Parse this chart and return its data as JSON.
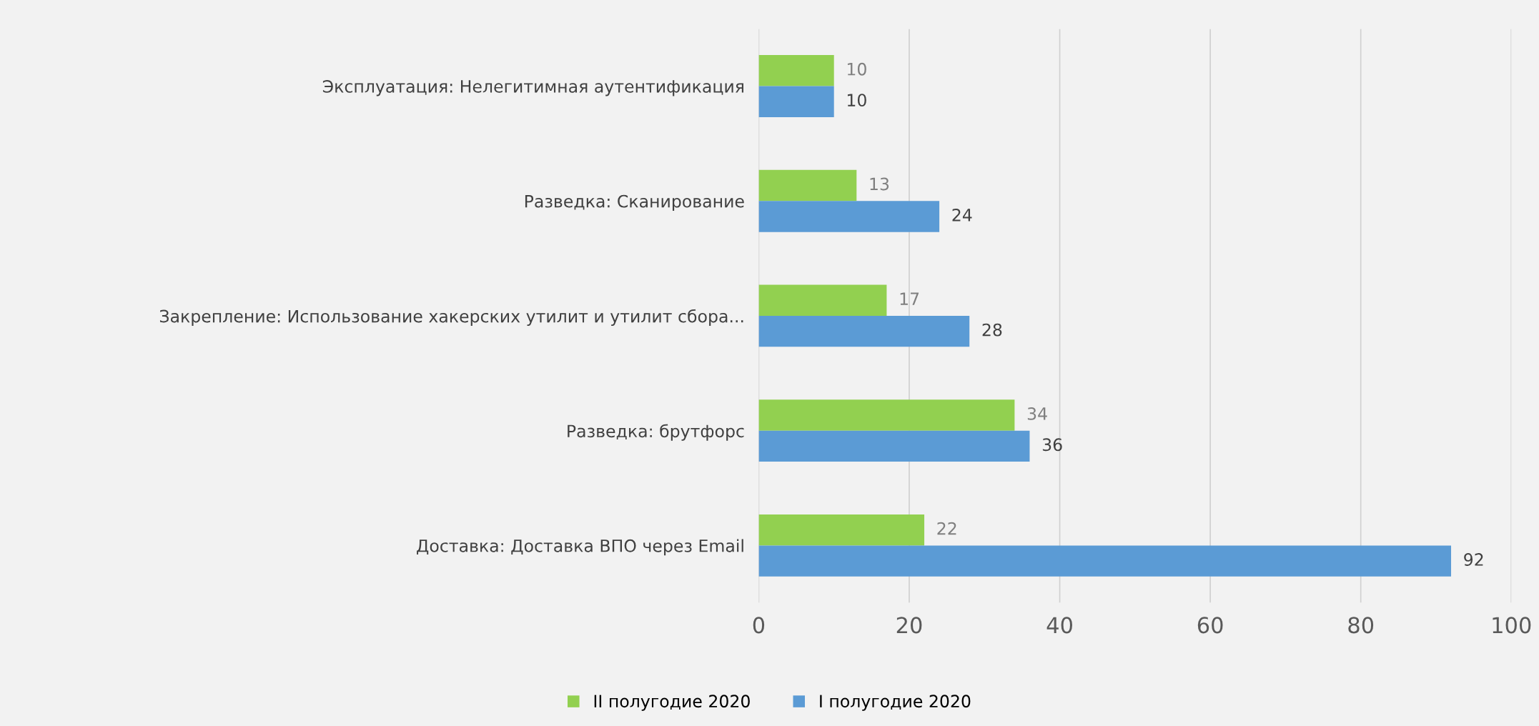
{
  "chart_data": {
    "type": "bar",
    "orientation": "horizontal",
    "categories": [
      "Эксплуатация: Нелегитимная аутентификация",
      "Разведка: Сканирование",
      "Закрепление: Использование хакерских утилит и утилит сбора...",
      "Разведка: брутфорс",
      "Доставка: Доставка ВПО через Email"
    ],
    "series": [
      {
        "name": "II полугодие 2020",
        "color": "#92d050",
        "values": [
          10,
          13,
          17,
          34,
          22
        ]
      },
      {
        "name": "I полугодие 2020",
        "color": "#5b9bd5",
        "values": [
          10,
          24,
          28,
          36,
          92
        ]
      }
    ],
    "xlim": [
      0,
      100
    ],
    "xticks": [
      0,
      20,
      40,
      60,
      80,
      100
    ],
    "grid": "x",
    "legend": "bottom",
    "data_labels": true
  }
}
